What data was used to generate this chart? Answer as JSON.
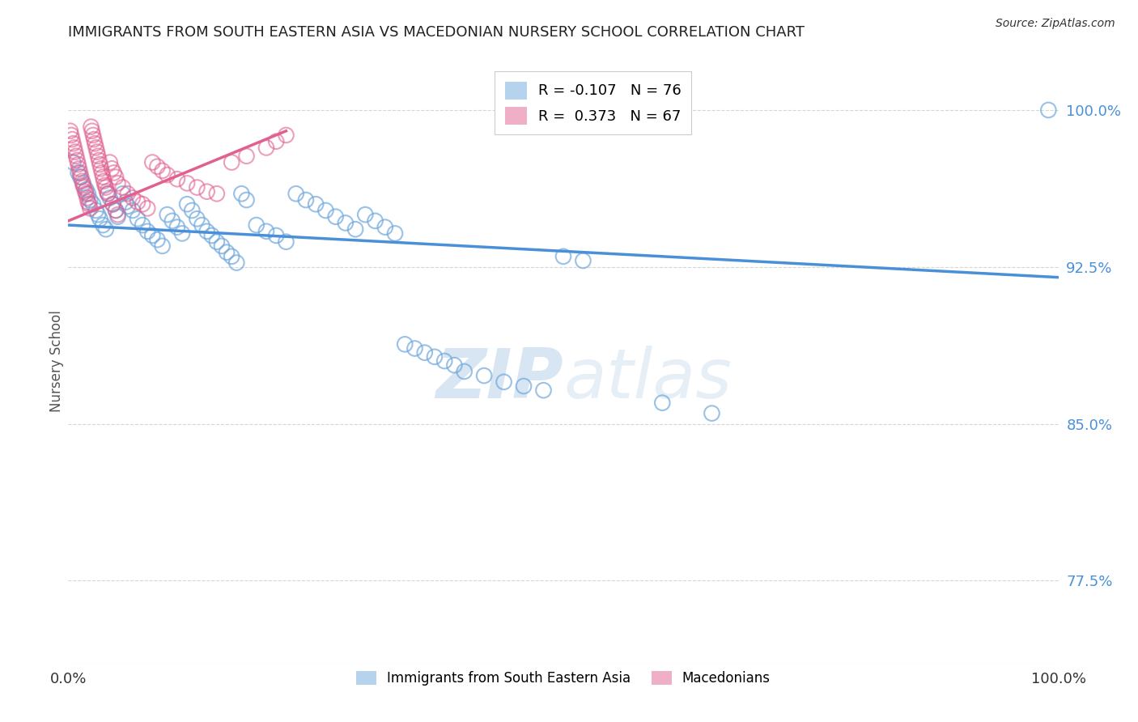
{
  "title": "IMMIGRANTS FROM SOUTH EASTERN ASIA VS MACEDONIAN NURSERY SCHOOL CORRELATION CHART",
  "source": "Source: ZipAtlas.com",
  "ylabel": "Nursery School",
  "xlim": [
    0.0,
    1.0
  ],
  "ylim": [
    0.735,
    1.025
  ],
  "yticks": [
    0.775,
    0.85,
    0.925,
    1.0
  ],
  "ytick_labels": [
    "77.5%",
    "85.0%",
    "92.5%",
    "100.0%"
  ],
  "xticks": [
    0.0,
    0.5,
    1.0
  ],
  "xtick_labels": [
    "0.0%",
    "",
    "100.0%"
  ],
  "blue_R": -0.107,
  "blue_N": 76,
  "pink_R": 0.373,
  "pink_N": 67,
  "blue_color": "#6fa8dc",
  "pink_color": "#e06090",
  "blue_line_color": "#4a90d9",
  "pink_line_color": "#e06090",
  "legend_blue_label": "Immigrants from South Eastern Asia",
  "legend_pink_label": "Macedonians",
  "watermark_zip": "ZIP",
  "watermark_atlas": "atlas",
  "background_color": "#ffffff",
  "title_fontsize": 13,
  "tick_label_color_y": "#4a90d9",
  "grid_color": "#cccccc",
  "blue_scatter_x": [
    0.005,
    0.01,
    0.012,
    0.015,
    0.018,
    0.02,
    0.022,
    0.025,
    0.028,
    0.03,
    0.032,
    0.035,
    0.038,
    0.04,
    0.042,
    0.045,
    0.048,
    0.05,
    0.055,
    0.058,
    0.06,
    0.065,
    0.07,
    0.075,
    0.08,
    0.085,
    0.09,
    0.095,
    0.1,
    0.105,
    0.11,
    0.115,
    0.12,
    0.125,
    0.13,
    0.135,
    0.14,
    0.145,
    0.15,
    0.155,
    0.16,
    0.165,
    0.17,
    0.175,
    0.18,
    0.19,
    0.2,
    0.21,
    0.22,
    0.23,
    0.24,
    0.25,
    0.26,
    0.27,
    0.28,
    0.29,
    0.3,
    0.31,
    0.32,
    0.33,
    0.34,
    0.35,
    0.36,
    0.37,
    0.38,
    0.39,
    0.4,
    0.42,
    0.44,
    0.46,
    0.48,
    0.5,
    0.52,
    0.6,
    0.65,
    0.99
  ],
  "blue_scatter_y": [
    0.975,
    0.97,
    0.968,
    0.965,
    0.962,
    0.96,
    0.957,
    0.955,
    0.952,
    0.95,
    0.948,
    0.945,
    0.943,
    0.96,
    0.958,
    0.955,
    0.952,
    0.949,
    0.96,
    0.956,
    0.954,
    0.952,
    0.948,
    0.945,
    0.942,
    0.94,
    0.938,
    0.935,
    0.95,
    0.947,
    0.944,
    0.941,
    0.955,
    0.952,
    0.948,
    0.945,
    0.942,
    0.94,
    0.937,
    0.935,
    0.932,
    0.93,
    0.927,
    0.96,
    0.957,
    0.945,
    0.942,
    0.94,
    0.937,
    0.96,
    0.957,
    0.955,
    0.952,
    0.949,
    0.946,
    0.943,
    0.95,
    0.947,
    0.944,
    0.941,
    0.888,
    0.886,
    0.884,
    0.882,
    0.88,
    0.878,
    0.875,
    0.873,
    0.87,
    0.868,
    0.866,
    0.93,
    0.928,
    0.86,
    0.855,
    1.0
  ],
  "pink_scatter_x": [
    0.002,
    0.003,
    0.004,
    0.005,
    0.006,
    0.007,
    0.008,
    0.009,
    0.01,
    0.011,
    0.012,
    0.013,
    0.014,
    0.015,
    0.016,
    0.017,
    0.018,
    0.019,
    0.02,
    0.021,
    0.022,
    0.023,
    0.024,
    0.025,
    0.026,
    0.027,
    0.028,
    0.029,
    0.03,
    0.031,
    0.032,
    0.033,
    0.034,
    0.035,
    0.036,
    0.037,
    0.038,
    0.039,
    0.04,
    0.042,
    0.044,
    0.046,
    0.048,
    0.05,
    0.055,
    0.06,
    0.065,
    0.07,
    0.075,
    0.08,
    0.085,
    0.09,
    0.095,
    0.1,
    0.11,
    0.12,
    0.13,
    0.14,
    0.15,
    0.165,
    0.18,
    0.2,
    0.21,
    0.22,
    0.045,
    0.048,
    0.05
  ],
  "pink_scatter_y": [
    0.99,
    0.988,
    0.986,
    0.984,
    0.982,
    0.98,
    0.978,
    0.976,
    0.974,
    0.972,
    0.97,
    0.968,
    0.966,
    0.964,
    0.963,
    0.961,
    0.96,
    0.958,
    0.956,
    0.955,
    0.953,
    0.992,
    0.99,
    0.988,
    0.986,
    0.984,
    0.982,
    0.98,
    0.978,
    0.976,
    0.974,
    0.972,
    0.97,
    0.968,
    0.966,
    0.964,
    0.963,
    0.961,
    0.96,
    0.975,
    0.972,
    0.97,
    0.968,
    0.965,
    0.963,
    0.96,
    0.958,
    0.956,
    0.955,
    0.953,
    0.975,
    0.973,
    0.971,
    0.969,
    0.967,
    0.965,
    0.963,
    0.961,
    0.96,
    0.975,
    0.978,
    0.982,
    0.985,
    0.988,
    0.955,
    0.952,
    0.95
  ],
  "blue_trendline": [
    0.0,
    1.0,
    0.945,
    0.92
  ],
  "pink_trendline": [
    0.0,
    0.22,
    0.947,
    0.99
  ]
}
